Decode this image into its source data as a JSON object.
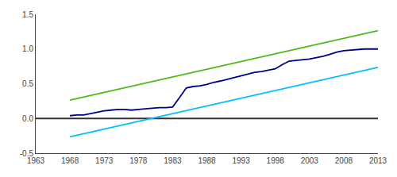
{
  "chart_data": {
    "type": "line",
    "series": [
      {
        "color": "#333333",
        "x": [
          1963,
          2013
        ],
        "values": [
          0.0,
          0.0
        ]
      },
      {
        "color": "#4CBB17",
        "x": [
          1968,
          2013
        ],
        "values": [
          0.265,
          1.265
        ]
      },
      {
        "color": "#00BFFF",
        "x": [
          1968,
          2013
        ],
        "values": [
          -0.265,
          0.735
        ]
      },
      {
        "color": "#00008B",
        "x": [
          1968,
          1969,
          1970,
          1971,
          1972,
          1973,
          1974,
          1975,
          1976,
          1977,
          1978,
          1979,
          1980,
          1981,
          1982,
          1983,
          1984,
          1985,
          1986,
          1987,
          1988,
          1989,
          1990,
          1991,
          1992,
          1993,
          1994,
          1995,
          1996,
          1997,
          1998,
          1999,
          2000,
          2001,
          2002,
          2003,
          2004,
          2005,
          2006,
          2007,
          2008,
          2009,
          2010,
          2011,
          2012,
          2013
        ],
        "values": [
          0.04,
          0.05,
          0.05,
          0.07,
          0.09,
          0.11,
          0.12,
          0.13,
          0.13,
          0.12,
          0.13,
          0.14,
          0.15,
          0.155,
          0.155,
          0.165,
          0.3,
          0.44,
          0.46,
          0.47,
          0.49,
          0.52,
          0.54,
          0.565,
          0.59,
          0.615,
          0.645,
          0.665,
          0.675,
          0.695,
          0.715,
          0.775,
          0.825,
          0.835,
          0.845,
          0.855,
          0.875,
          0.895,
          0.925,
          0.955,
          0.975,
          0.985,
          0.995,
          1.0,
          1.0,
          1.0
        ]
      }
    ],
    "xlim": [
      1963,
      2013
    ],
    "xticks": [
      1963,
      1968,
      1973,
      1978,
      1983,
      1988,
      1993,
      1998,
      2003,
      2008,
      2013
    ],
    "ylim": [
      -0.5,
      1.5
    ],
    "yticks": [
      -0.5,
      {
        "value": 0.0,
        "label": "0.0"
      },
      0.5,
      {
        "value": 1.0,
        "label": "1.0"
      },
      1.5
    ],
    "grid": false,
    "marker": "none"
  }
}
